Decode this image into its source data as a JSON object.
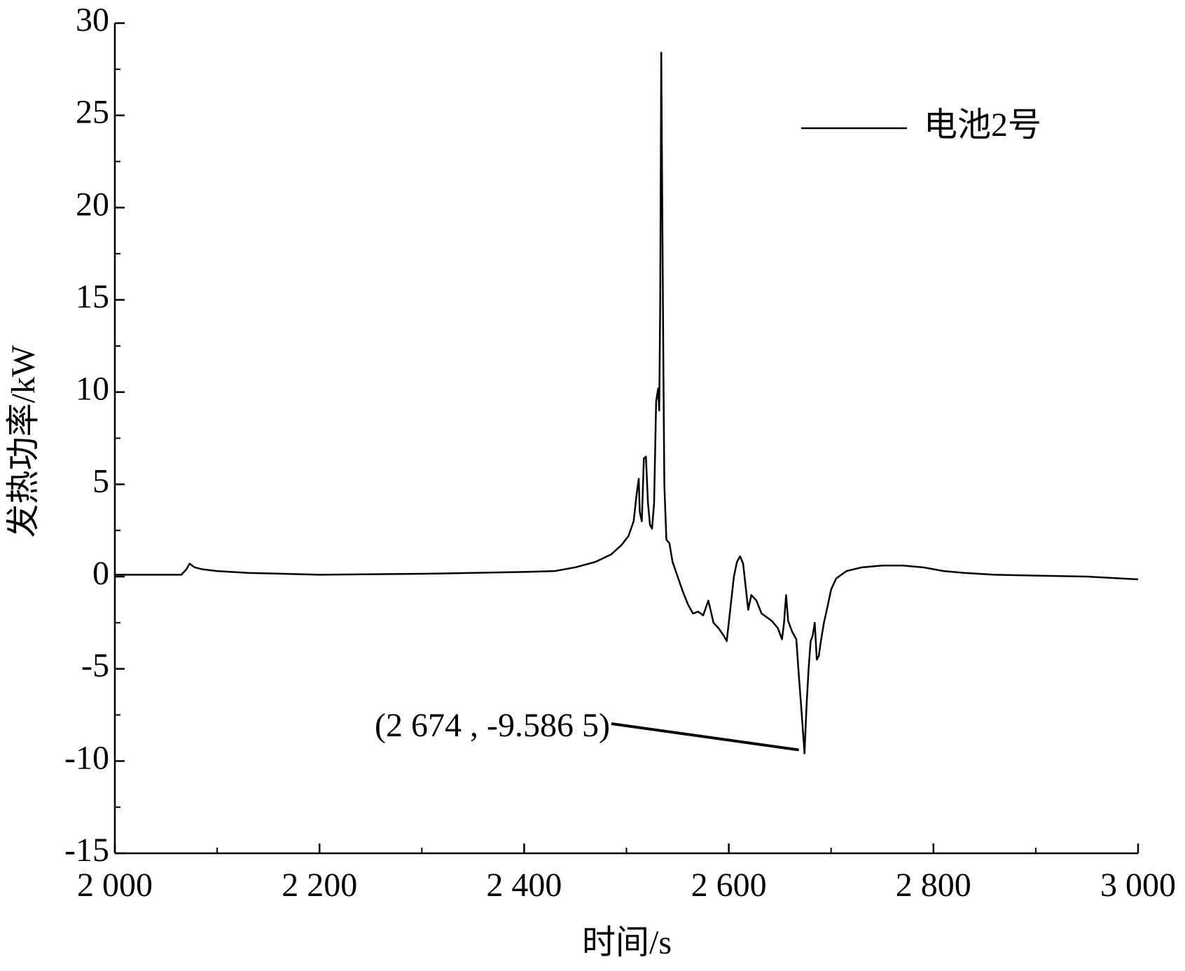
{
  "chart_data": {
    "type": "line",
    "x_label": "时间/s",
    "y_label": "发热功率/kW",
    "xlim": [
      2000,
      3000
    ],
    "ylim": [
      -15,
      30
    ],
    "xticks": [
      {
        "value": 2000,
        "label": "2 000"
      },
      {
        "value": 2200,
        "label": "2 200"
      },
      {
        "value": 2400,
        "label": "2 400"
      },
      {
        "value": 2600,
        "label": "2 600"
      },
      {
        "value": 2800,
        "label": "2 800"
      },
      {
        "value": 3000,
        "label": "3 000"
      }
    ],
    "xminorticks": [
      2100,
      2300,
      2500,
      2700,
      2900
    ],
    "yticks": [
      -15,
      -10,
      -5,
      0,
      5,
      10,
      15,
      20,
      25,
      30
    ],
    "yminorticks": [
      -12.5,
      -7.5,
      -2.5,
      2.5,
      7.5,
      12.5,
      17.5,
      22.5,
      27.5
    ],
    "legend": "upper right",
    "x": [
      2000,
      2020,
      2050,
      2065,
      2070,
      2073,
      2078,
      2085,
      2100,
      2130,
      2200,
      2300,
      2350,
      2400,
      2430,
      2450,
      2470,
      2485,
      2495,
      2502,
      2507,
      2510,
      2512,
      2513,
      2515,
      2517,
      2519,
      2521,
      2523,
      2525,
      2527,
      2529,
      2531,
      2532,
      2533,
      2534,
      2535,
      2536,
      2537,
      2539,
      2542,
      2545,
      2550,
      2555,
      2560,
      2565,
      2570,
      2575,
      2580,
      2583,
      2585,
      2590,
      2595,
      2598,
      2600,
      2602,
      2605,
      2608,
      2611,
      2614,
      2617,
      2619,
      2622,
      2627,
      2632,
      2637,
      2642,
      2648,
      2652,
      2654,
      2656,
      2658,
      2662,
      2666,
      2668,
      2670,
      2672,
      2674,
      2676,
      2678,
      2680,
      2682,
      2684,
      2686,
      2688,
      2690,
      2693,
      2697,
      2700,
      2705,
      2715,
      2730,
      2750,
      2770,
      2790,
      2810,
      2830,
      2860,
      2900,
      2950,
      3000
    ],
    "series": [
      {
        "name": "电池2号",
        "color": "#000000",
        "values": [
          0.1,
          0.1,
          0.1,
          0.1,
          0.4,
          0.7,
          0.5,
          0.4,
          0.3,
          0.2,
          0.1,
          0.15,
          0.2,
          0.25,
          0.3,
          0.5,
          0.8,
          1.2,
          1.7,
          2.2,
          3,
          4.5,
          5.3,
          3.5,
          3,
          6.4,
          6.5,
          4,
          2.8,
          2.6,
          4,
          9.5,
          10.2,
          9,
          15,
          28.4,
          20,
          12,
          5,
          2,
          1.8,
          0.8,
          0,
          -0.8,
          -1.5,
          -2,
          -1.9,
          -2.1,
          -1.3,
          -2,
          -2.5,
          -2.8,
          -3.2,
          -3.5,
          -2.5,
          -1.5,
          0,
          0.8,
          1.1,
          0.7,
          -0.8,
          -1.8,
          -1,
          -1.3,
          -2,
          -2.2,
          -2.4,
          -2.8,
          -3.4,
          -2.5,
          -1,
          -2.4,
          -3,
          -3.4,
          -5,
          -6.5,
          -8,
          -9.5865,
          -7,
          -5,
          -3.5,
          -3.2,
          -2.5,
          -4.5,
          -4.3,
          -3.5,
          -2.5,
          -1.5,
          -0.7,
          -0.1,
          0.3,
          0.5,
          0.6,
          0.6,
          0.5,
          0.3,
          0.2,
          0.1,
          0.05,
          0,
          -0.15
        ]
      }
    ],
    "annotation": {
      "text": "(2 674 , -9.586 5)",
      "x": 2674,
      "y": -9.5865
    }
  }
}
